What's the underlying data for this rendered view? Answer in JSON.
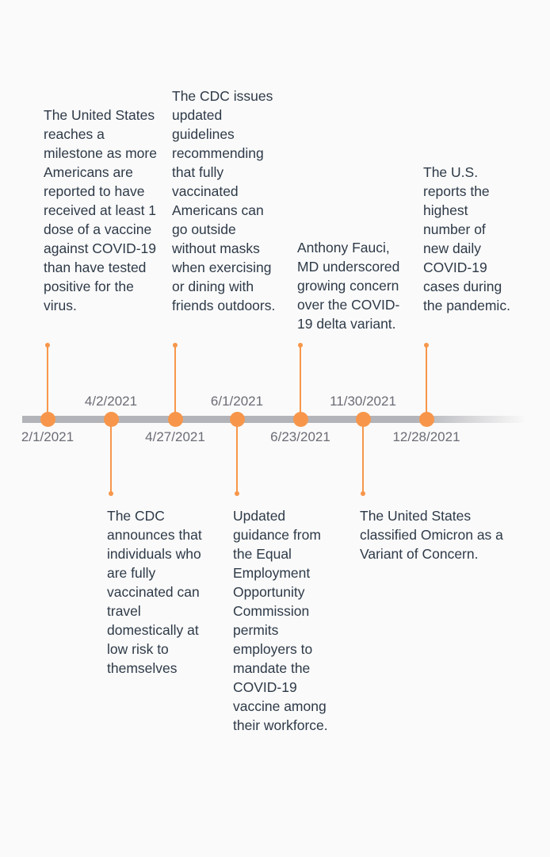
{
  "accent_color": "#f7964a",
  "axis_color": "#b3b4b9",
  "events": [
    {
      "date": "2/1/2021",
      "text": "The United States reaches a milestone as more Americans are reported to have received at least 1 dose of a vaccine against COVID-19 than have tested positive for the virus."
    },
    {
      "date": "4/2/2021",
      "text": "The CDC announces that individuals who are fully vaccinated can travel domestically at low risk to themselves"
    },
    {
      "date": "4/27/2021",
      "text": "The CDC issues updated guidelines recommending that fully vaccinated Americans can go outside without masks when exercising or dining with friends outdoors."
    },
    {
      "date": "6/1/2021",
      "text": "Updated guidance from the Equal Employment Opportunity Commission permits employers to mandate the COVID-19 vaccine among their workforce."
    },
    {
      "date": "6/23/2021",
      "text": "Anthony Fauci, MD underscored growing concern over the COVID-19 delta variant."
    },
    {
      "date": "11/30/2021",
      "text": "The United States classified Omicron as a Variant of Concern."
    },
    {
      "date": "12/28/2021",
      "text": "The U.S. reports the highest number of new daily COVID-19 cases during the pandemic."
    }
  ]
}
